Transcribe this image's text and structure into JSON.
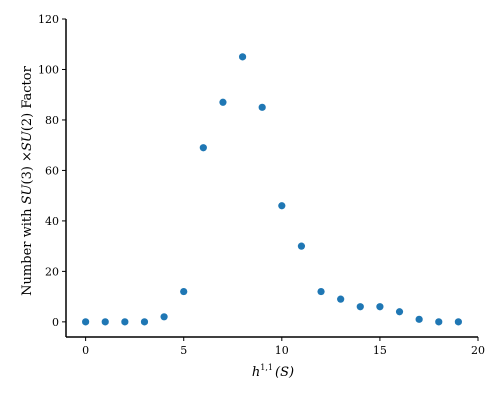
{
  "chart_data": {
    "type": "scatter",
    "title": "",
    "xlabel": "h^{1,1}(S)",
    "xlabel_parts": {
      "base": "h",
      "sup": "1,1",
      "arg": "(S)"
    },
    "ylabel": "Number with SU(3) ×SU(2) Factor",
    "ylabel_parts": {
      "prefix": "Number with ",
      "g1": "SU",
      "a1": "(3) ×",
      "g2": "SU",
      "a2": "(2) Factor"
    },
    "xlim": [
      -1,
      20
    ],
    "ylim": [
      -6,
      120
    ],
    "xticks": [
      0,
      5,
      10,
      15,
      20
    ],
    "yticks": [
      0,
      20,
      40,
      60,
      80,
      100,
      120
    ],
    "grid": false,
    "color": "#1f77b4",
    "x": [
      0,
      1,
      2,
      3,
      4,
      5,
      6,
      7,
      8,
      9,
      10,
      11,
      12,
      13,
      14,
      15,
      16,
      17,
      18,
      19
    ],
    "y": [
      0,
      0,
      0,
      0,
      2,
      12,
      69,
      87,
      105,
      85,
      46,
      30,
      12,
      9,
      6,
      6,
      4,
      1,
      0,
      0
    ]
  }
}
